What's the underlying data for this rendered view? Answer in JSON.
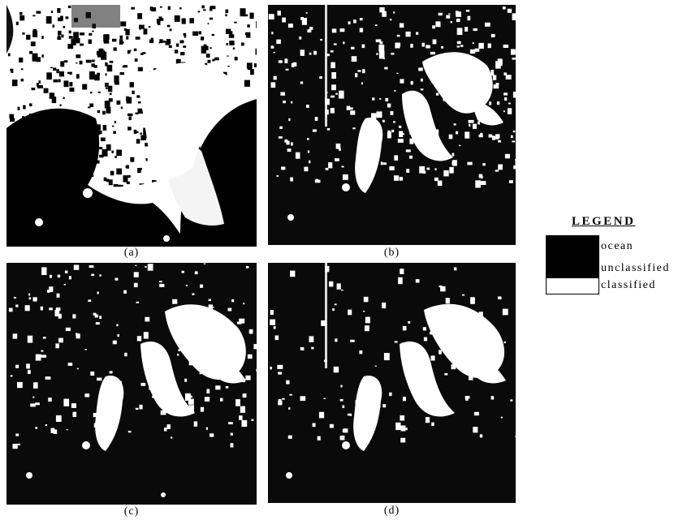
{
  "panels": [
    {
      "id": "a",
      "caption": "(a)"
    },
    {
      "id": "b",
      "caption": "(b)"
    },
    {
      "id": "c",
      "caption": "(c)"
    },
    {
      "id": "d",
      "caption": "(d)"
    }
  ],
  "legend": {
    "title": "LEGEND",
    "items": [
      {
        "label": "ocean",
        "color": "#000000"
      },
      {
        "label": "unclassified",
        "color": "#000000"
      },
      {
        "label": "classified",
        "color": "#ffffff"
      }
    ]
  },
  "colors": {
    "ocean": "#000000",
    "unclassified": "#0a0a0a",
    "classified": "#ffffff"
  }
}
